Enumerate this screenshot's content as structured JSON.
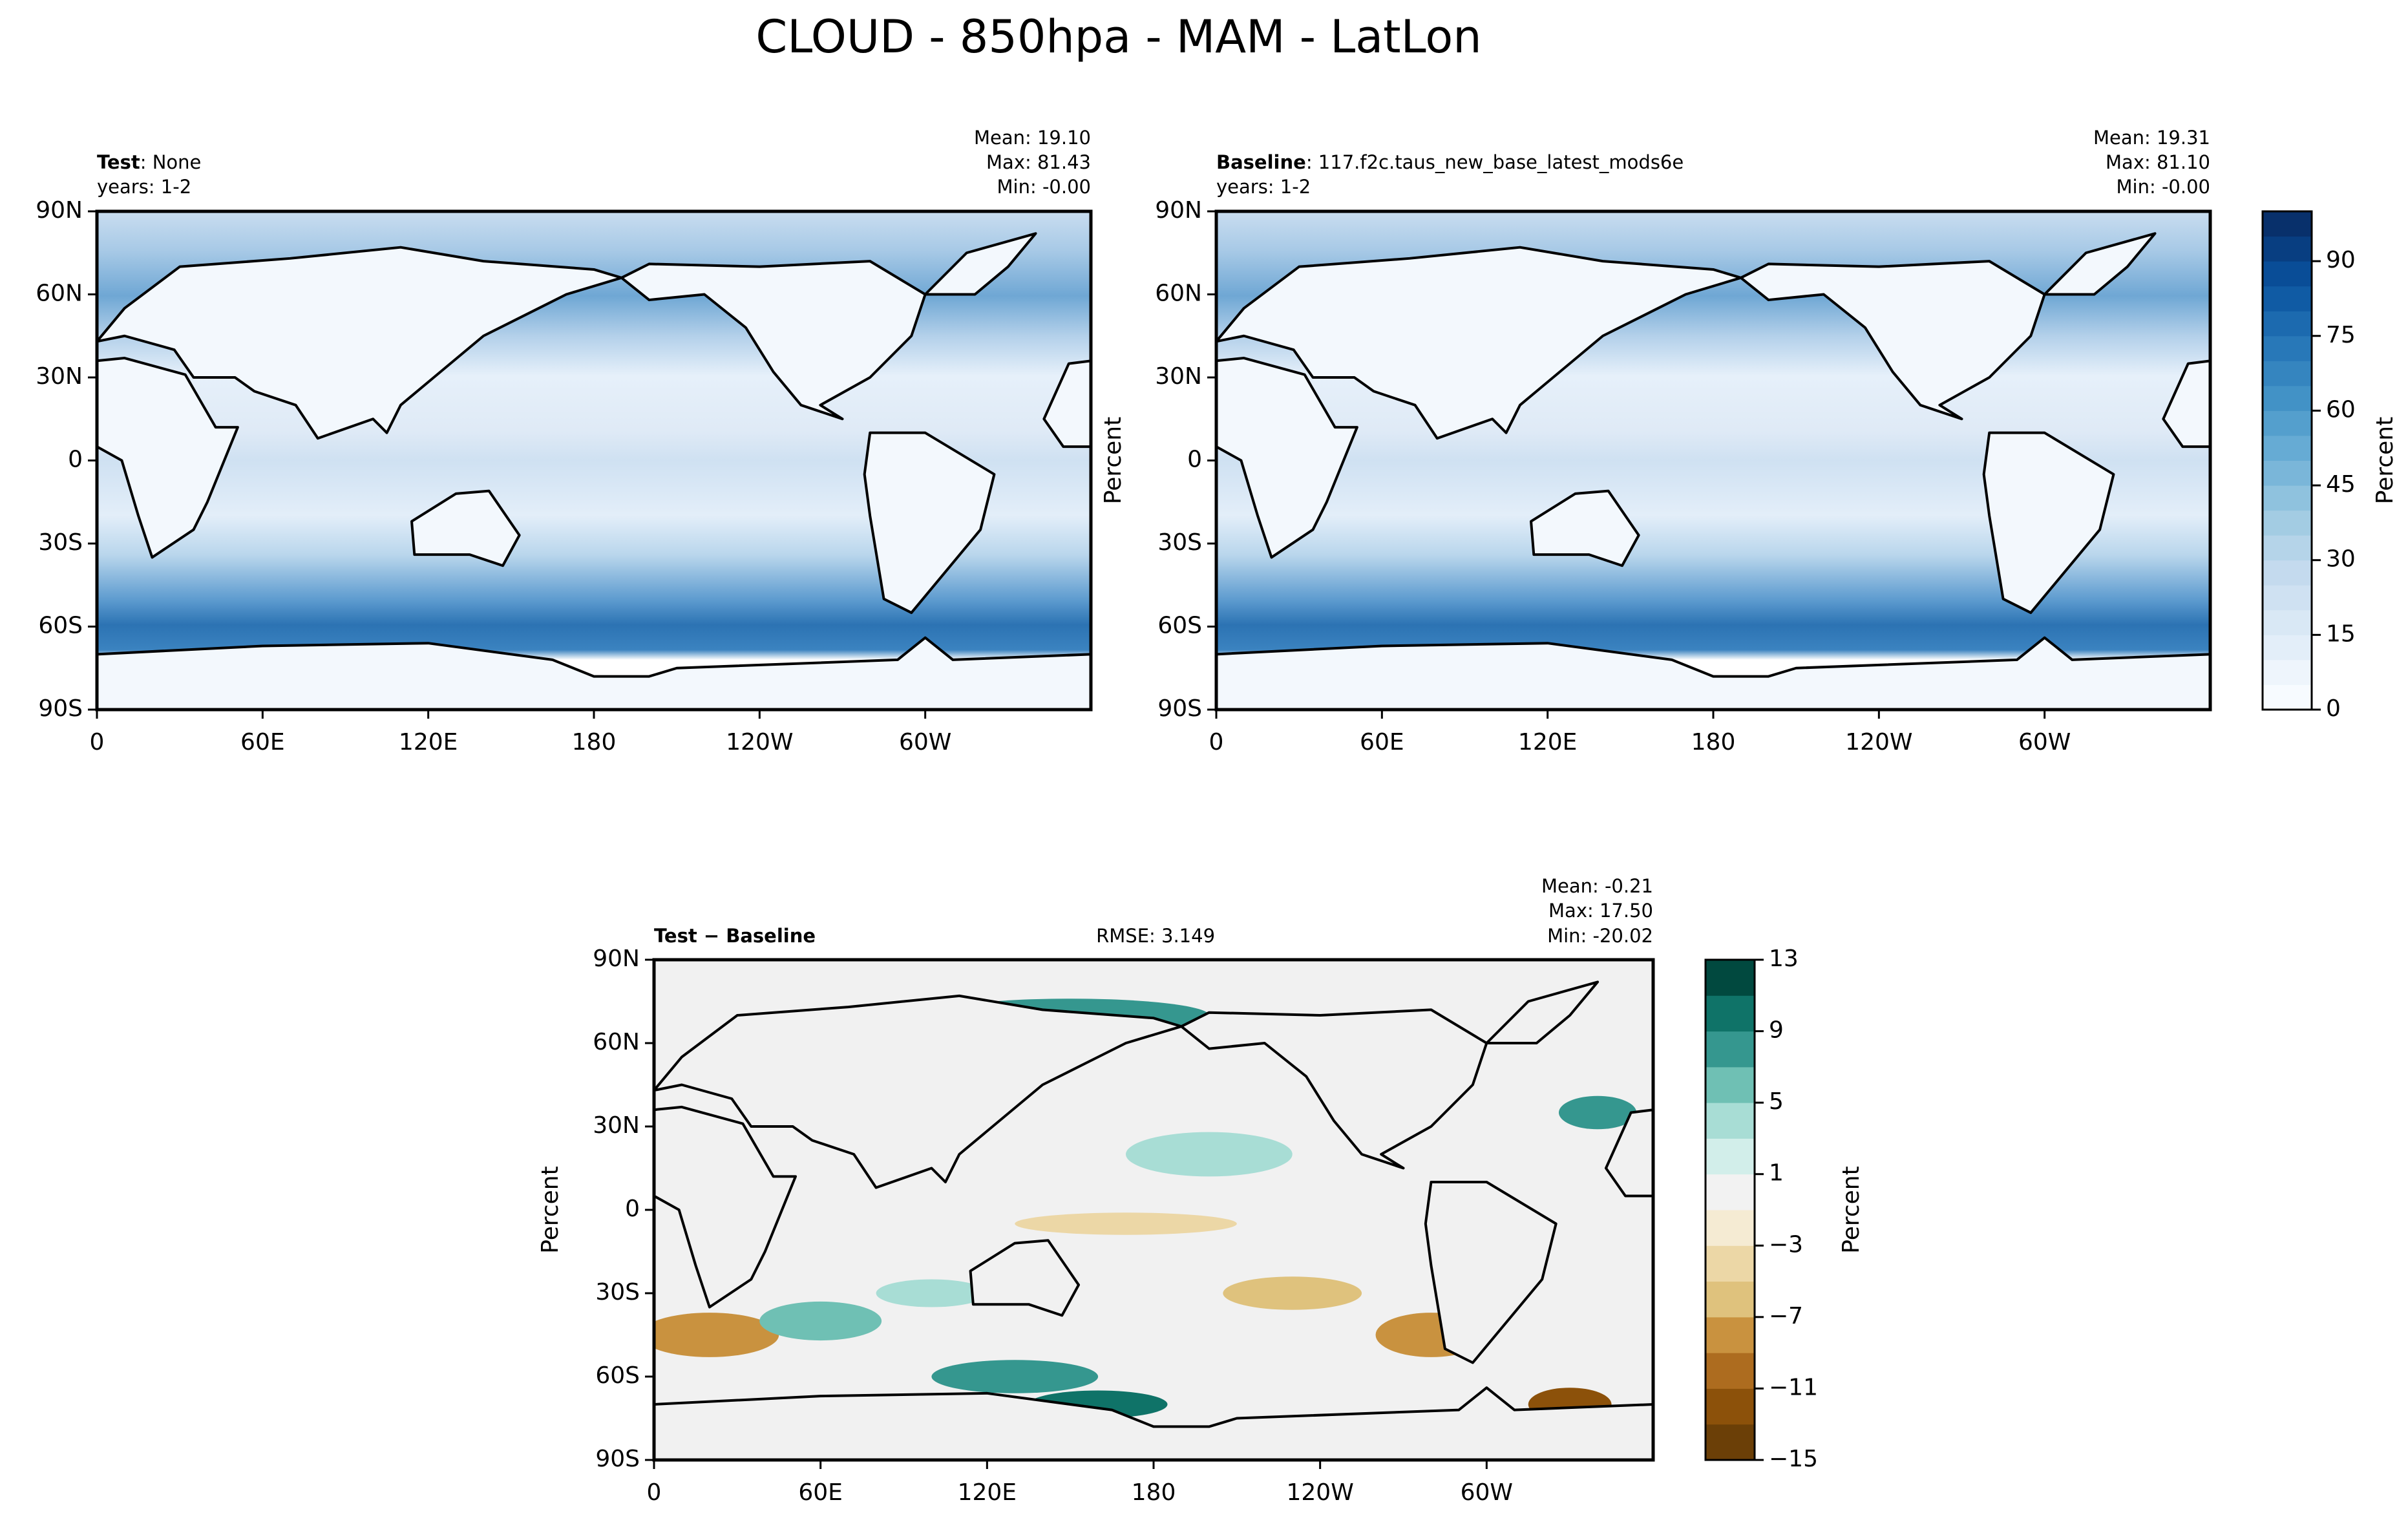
{
  "title": "CLOUD - 850hpa - MAM - LatLon",
  "chart_data": [
    {
      "type": "contour-map",
      "label": "Test",
      "label_suffix": ": None",
      "years": "years: 1-2",
      "stats": [
        "Mean: 19.10",
        "Max: 81.43",
        "Min: -0.00"
      ],
      "xlim": [
        0,
        360
      ],
      "ylim": [
        -90,
        90
      ],
      "xticks": [
        0,
        {
          "value": 60,
          "label": "60E"
        },
        {
          "value": 120,
          "label": "120E"
        },
        180,
        {
          "value": 240,
          "label": "120W"
        },
        {
          "value": 300,
          "label": "60W"
        }
      ],
      "yticks": [
        {
          "value": -90,
          "label": "90S"
        },
        {
          "value": -60,
          "label": "60S"
        },
        {
          "value": -30,
          "label": "30S"
        },
        0,
        {
          "value": 30,
          "label": "30N"
        },
        {
          "value": 60,
          "label": "60N"
        },
        {
          "value": 90,
          "label": "90N"
        }
      ]
    },
    {
      "type": "contour-map",
      "label": "Baseline",
      "label_suffix": ": 117.f2c.taus_new_base_latest_mods6e",
      "years": "years: 1-2",
      "stats": [
        "Mean: 19.31",
        "Max: 81.10",
        "Min: -0.00"
      ],
      "ylabel": "Percent",
      "xlim": [
        0,
        360
      ],
      "ylim": [
        -90,
        90
      ],
      "xticks": [
        0,
        {
          "value": 60,
          "label": "60E"
        },
        {
          "value": 120,
          "label": "120E"
        },
        180,
        {
          "value": 240,
          "label": "120W"
        },
        {
          "value": 300,
          "label": "60W"
        }
      ],
      "yticks": [
        {
          "value": -90,
          "label": "90S"
        },
        {
          "value": -60,
          "label": "60S"
        },
        {
          "value": -30,
          "label": "30S"
        },
        0,
        {
          "value": 30,
          "label": "30N"
        },
        {
          "value": 60,
          "label": "60N"
        },
        {
          "value": 90,
          "label": "90N"
        }
      ],
      "colorbar": {
        "label": "Percent",
        "lim": [
          0,
          100
        ],
        "ticks": [
          0,
          15,
          30,
          45,
          60,
          75,
          90
        ],
        "colors": [
          "#f7fbff",
          "#eef5fc",
          "#e3eef9",
          "#d9e8f5",
          "#cfe1f2",
          "#c4daee",
          "#b5d4e9",
          "#a3cce3",
          "#8fc2de",
          "#7ab6d9",
          "#66abd4",
          "#549fcd",
          "#4292c6",
          "#3585bf",
          "#2878b8",
          "#1c6aaf",
          "#105ba4",
          "#094d97",
          "#083e81",
          "#08306b"
        ]
      }
    },
    {
      "type": "contour-map",
      "label": "Test − Baseline",
      "rmse": "RMSE: 3.149",
      "stats": [
        "Mean: -0.21",
        "Max: 17.50",
        "Min: -20.02"
      ],
      "ylabel": "Percent",
      "xlim": [
        0,
        360
      ],
      "ylim": [
        -90,
        90
      ],
      "xticks": [
        0,
        {
          "value": 60,
          "label": "60E"
        },
        {
          "value": 120,
          "label": "120E"
        },
        180,
        {
          "value": 240,
          "label": "120W"
        },
        {
          "value": 300,
          "label": "60W"
        }
      ],
      "yticks": [
        {
          "value": -90,
          "label": "90S"
        },
        {
          "value": -60,
          "label": "60S"
        },
        {
          "value": -30,
          "label": "30S"
        },
        0,
        {
          "value": 30,
          "label": "30N"
        },
        {
          "value": 60,
          "label": "60N"
        },
        {
          "value": 90,
          "label": "90N"
        }
      ],
      "colorbar": {
        "label": "Percent",
        "lim": [
          -15,
          13
        ],
        "ticks": [
          {
            "value": -15,
            "label": "−15"
          },
          {
            "value": -11,
            "label": "−11"
          },
          {
            "value": -7,
            "label": "−7"
          },
          {
            "value": -3,
            "label": "−3"
          },
          1,
          5,
          9,
          13
        ],
        "colors": [
          "#6b3f07",
          "#8c510a",
          "#ad6c1f",
          "#c9923f",
          "#dfc27d",
          "#ecd7a6",
          "#f5ebd3",
          "#f2f2f2",
          "#d2eeea",
          "#a8ddd5",
          "#6fc0b4",
          "#35978f",
          "#0f7368",
          "#01493f"
        ]
      }
    }
  ]
}
